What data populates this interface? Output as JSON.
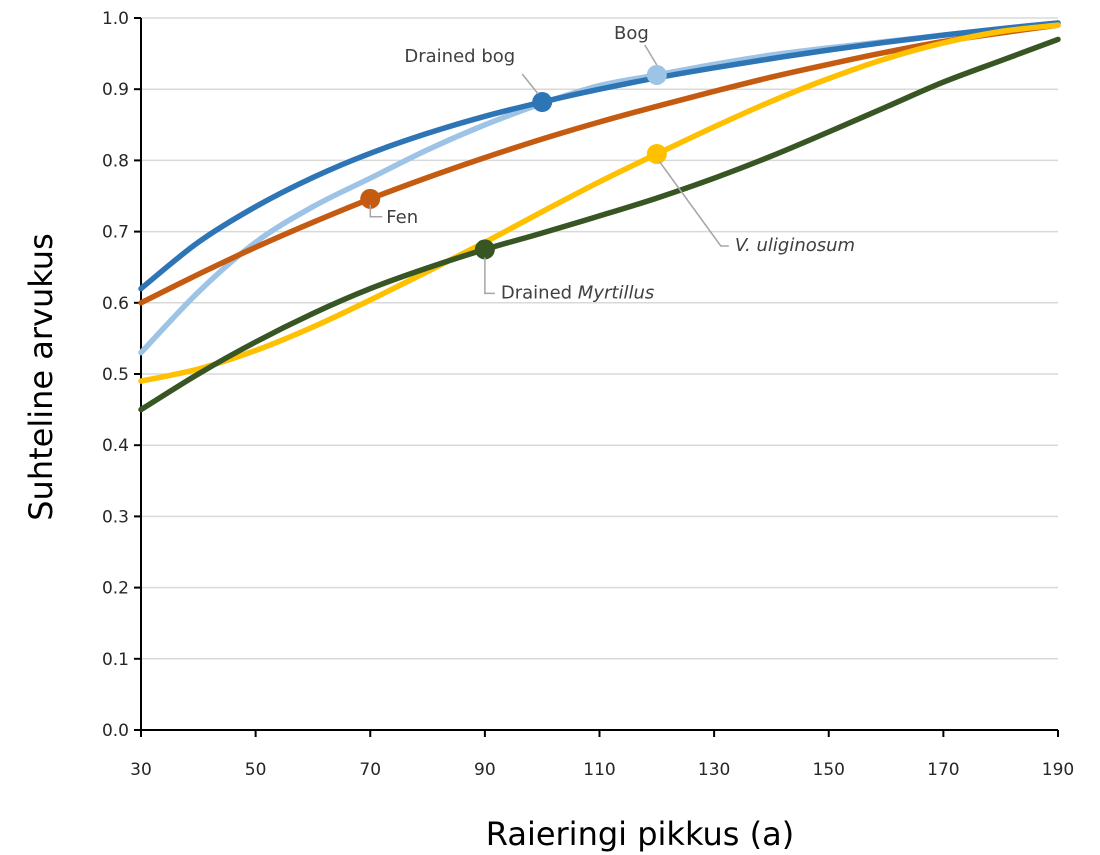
{
  "chart_data": {
    "type": "line",
    "xlabel": "Raieringi pikkus (a)",
    "ylabel": "Suhteline arvukus",
    "xlim": [
      30,
      190
    ],
    "ylim": [
      0.0,
      1.0
    ],
    "x_ticks": [
      30,
      50,
      70,
      90,
      110,
      130,
      150,
      170,
      190
    ],
    "y_ticks": [
      "0.0",
      "0.1",
      "0.2",
      "0.3",
      "0.4",
      "0.5",
      "0.6",
      "0.7",
      "0.8",
      "0.9",
      "1.0"
    ],
    "grid": "horizontal",
    "series": [
      {
        "name": "Bog",
        "color": "#9dc3e6",
        "x": [
          30,
          40,
          50,
          60,
          70,
          80,
          90,
          100,
          110,
          120,
          130,
          140,
          150,
          160,
          170,
          180,
          190
        ],
        "y": [
          0.53,
          0.615,
          0.685,
          0.735,
          0.775,
          0.815,
          0.85,
          0.88,
          0.905,
          0.92,
          0.935,
          0.948,
          0.958,
          0.967,
          0.976,
          0.985,
          0.993
        ],
        "marker": {
          "x": 120,
          "y": 0.92
        },
        "label": "Bog"
      },
      {
        "name": "Drained bog",
        "color": "#2e75b6",
        "x": [
          30,
          40,
          50,
          60,
          70,
          80,
          90,
          100,
          110,
          120,
          130,
          140,
          150,
          160,
          170,
          180,
          190
        ],
        "y": [
          0.62,
          0.685,
          0.735,
          0.776,
          0.81,
          0.838,
          0.862,
          0.882,
          0.9,
          0.916,
          0.93,
          0.943,
          0.955,
          0.966,
          0.976,
          0.985,
          0.993
        ],
        "marker": {
          "x": 100,
          "y": 0.882
        },
        "label": "Drained bog"
      },
      {
        "name": "Fen",
        "color": "#c55a11",
        "x": [
          30,
          40,
          50,
          60,
          70,
          80,
          90,
          100,
          110,
          120,
          130,
          140,
          150,
          160,
          170,
          180,
          190
        ],
        "y": [
          0.6,
          0.64,
          0.678,
          0.713,
          0.746,
          0.776,
          0.804,
          0.83,
          0.854,
          0.876,
          0.897,
          0.917,
          0.935,
          0.952,
          0.967,
          0.979,
          0.99
        ],
        "marker": {
          "x": 70,
          "y": 0.746
        },
        "label": "Fen"
      },
      {
        "name": "V. uliginosum",
        "color": "#ffc000",
        "x": [
          30,
          40,
          50,
          60,
          70,
          80,
          90,
          100,
          110,
          120,
          130,
          140,
          150,
          160,
          170,
          180,
          190
        ],
        "y": [
          0.49,
          0.507,
          0.533,
          0.566,
          0.604,
          0.644,
          0.685,
          0.728,
          0.77,
          0.809,
          0.847,
          0.883,
          0.915,
          0.943,
          0.965,
          0.981,
          0.99
        ],
        "marker": {
          "x": 120,
          "y": 0.809
        },
        "label": "V. uliginosum"
      },
      {
        "name": "Drained Myrtillus",
        "color": "#375623",
        "x": [
          30,
          40,
          50,
          60,
          70,
          80,
          90,
          100,
          110,
          120,
          130,
          140,
          150,
          160,
          170,
          180,
          190
        ],
        "y": [
          0.45,
          0.5,
          0.545,
          0.585,
          0.62,
          0.649,
          0.675,
          0.698,
          0.722,
          0.747,
          0.775,
          0.806,
          0.84,
          0.875,
          0.91,
          0.94,
          0.97
        ],
        "marker": {
          "x": 90,
          "y": 0.675
        },
        "label": "Drained Myrtillus"
      }
    ]
  }
}
